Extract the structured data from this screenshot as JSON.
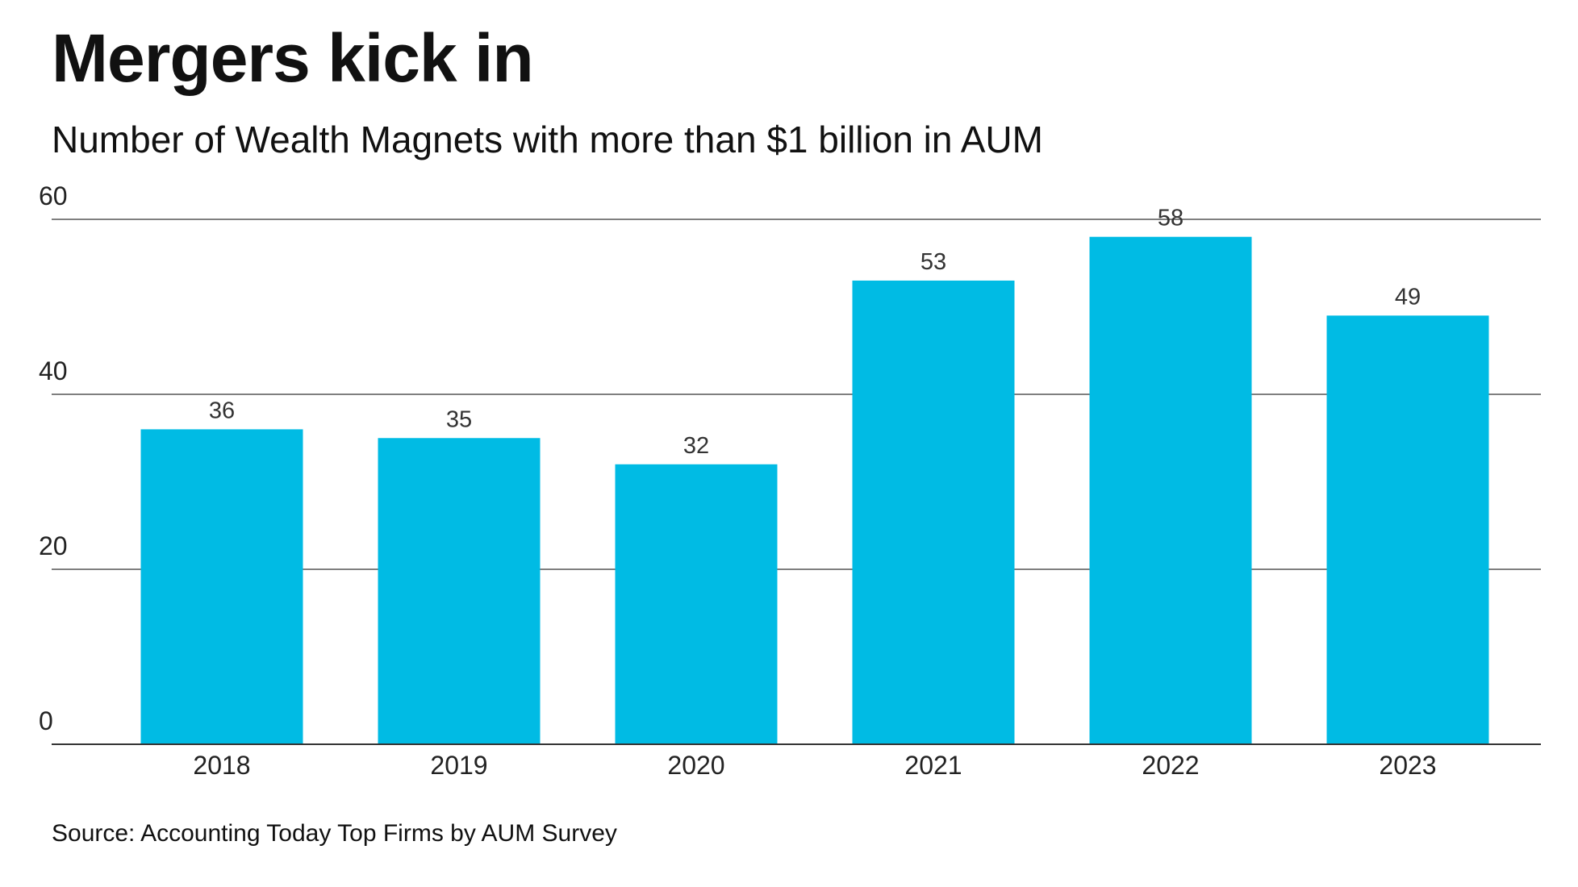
{
  "chart_data": {
    "type": "bar",
    "title": "Mergers kick in",
    "subtitle": "Number of Wealth Magnets with more than $1 billion in AUM",
    "categories": [
      "2018",
      "2019",
      "2020",
      "2021",
      "2022",
      "2023"
    ],
    "values": [
      36,
      35,
      32,
      53,
      58,
      49
    ],
    "data_labels": [
      "36",
      "35",
      "32",
      "53",
      "58",
      "49"
    ],
    "y_ticks": [
      0,
      20,
      40,
      60
    ],
    "ylim": [
      0,
      60
    ],
    "grid": true,
    "legend": "none",
    "xlabel": "",
    "ylabel": "",
    "bar_color": "#00BBE4",
    "source": "Source: Accounting Today Top Firms by AUM Survey"
  }
}
